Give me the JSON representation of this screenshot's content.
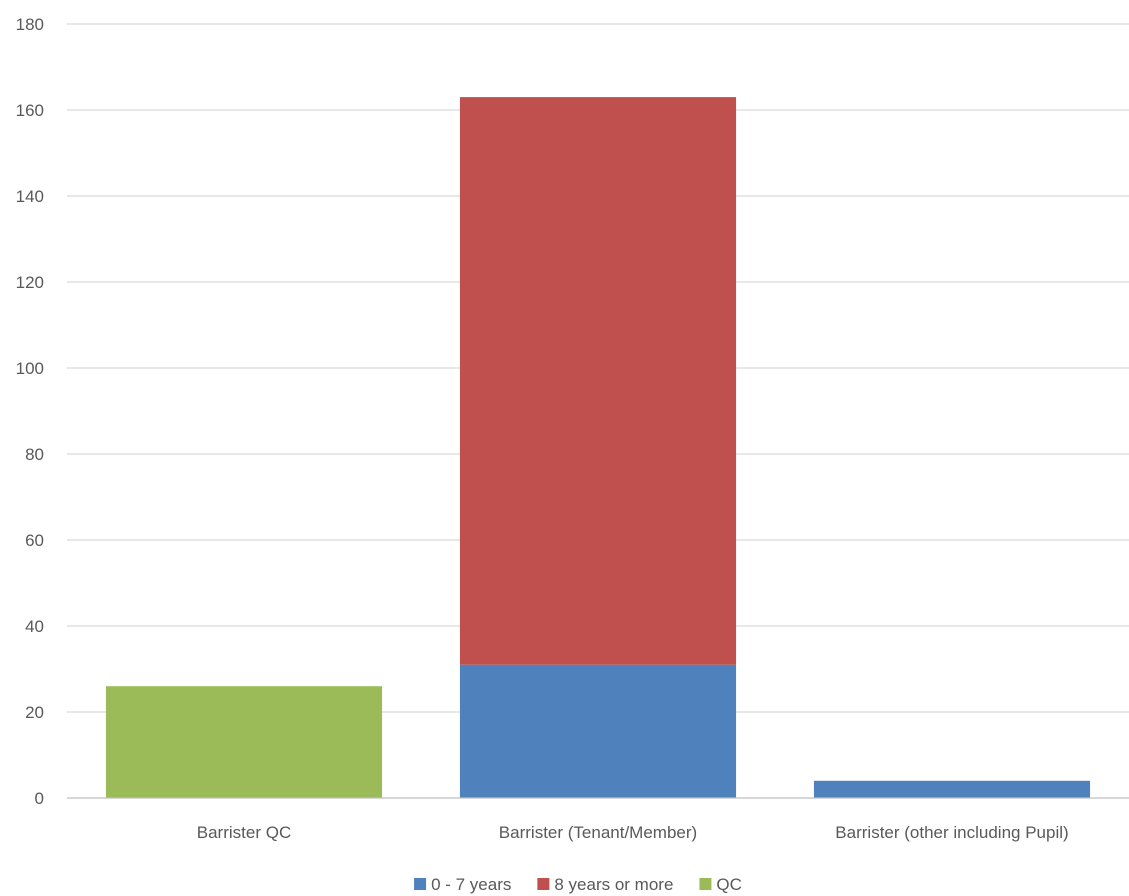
{
  "chart_data": {
    "type": "bar",
    "stacked": true,
    "title": "",
    "xlabel": "",
    "ylabel": "",
    "categories": [
      "Barrister QC",
      "Barrister (Tenant/Member)",
      "Barrister (other including Pupil)"
    ],
    "series": [
      {
        "name": "0 - 7 years",
        "color": "#4f81bd",
        "values": [
          0,
          31,
          4
        ]
      },
      {
        "name": "8 years or more",
        "color": "#c0504d",
        "values": [
          0,
          132,
          0
        ]
      },
      {
        "name": "QC",
        "color": "#9bbb59",
        "values": [
          26,
          0,
          0
        ]
      }
    ],
    "ylim": [
      0,
      180
    ],
    "yticks": [
      0,
      20,
      40,
      60,
      80,
      100,
      120,
      140,
      160,
      180
    ],
    "grid": true,
    "legend_position": "bottom"
  }
}
